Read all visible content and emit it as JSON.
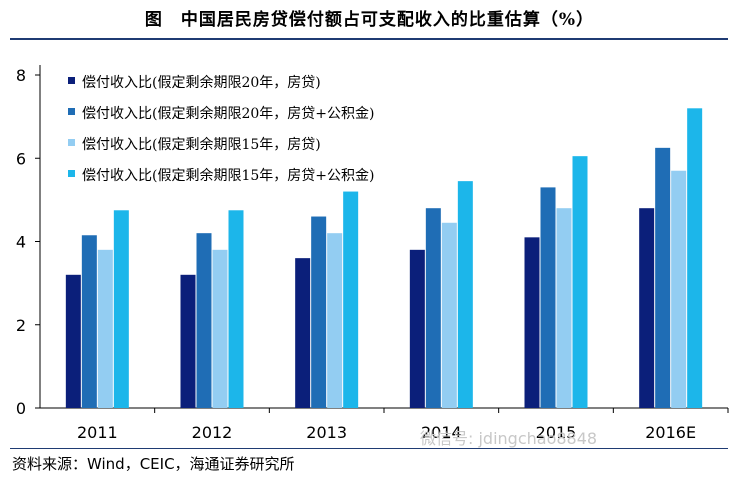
{
  "title": "图　中国居民房贷偿付额占可支配收入的比重估算（%）",
  "source": "资料来源：Wind，CEIC，海通证券研究所",
  "watermark": "微信号: jdingchao8848",
  "chart_data": {
    "type": "bar",
    "categories": [
      "2011",
      "2012",
      "2013",
      "2014",
      "2015",
      "2016E"
    ],
    "ylim": [
      0,
      8
    ],
    "yticks": [
      "0",
      "2",
      "4",
      "6",
      "8"
    ],
    "grid": false,
    "legend_position": "top-left",
    "series": [
      {
        "name": "偿付收入比(假定剩余期限20年，房贷)",
        "color": "#0b1f7a",
        "values": [
          3.2,
          3.2,
          3.6,
          3.8,
          4.1,
          4.8
        ]
      },
      {
        "name": "偿付收入比(假定剩余期限20年，房贷+公积金)",
        "color": "#1f6db5",
        "values": [
          4.15,
          4.2,
          4.6,
          4.8,
          5.3,
          6.25
        ]
      },
      {
        "name": "偿付收入比(假定剩余期限15年，房贷)",
        "color": "#93cdf2",
        "values": [
          3.8,
          3.8,
          4.2,
          4.45,
          4.8,
          5.7
        ]
      },
      {
        "name": "偿付收入比(假定剩余期限15年，房贷+公积金)",
        "color": "#1cb6ea",
        "values": [
          4.75,
          4.75,
          5.2,
          5.45,
          6.05,
          7.2
        ]
      }
    ]
  }
}
